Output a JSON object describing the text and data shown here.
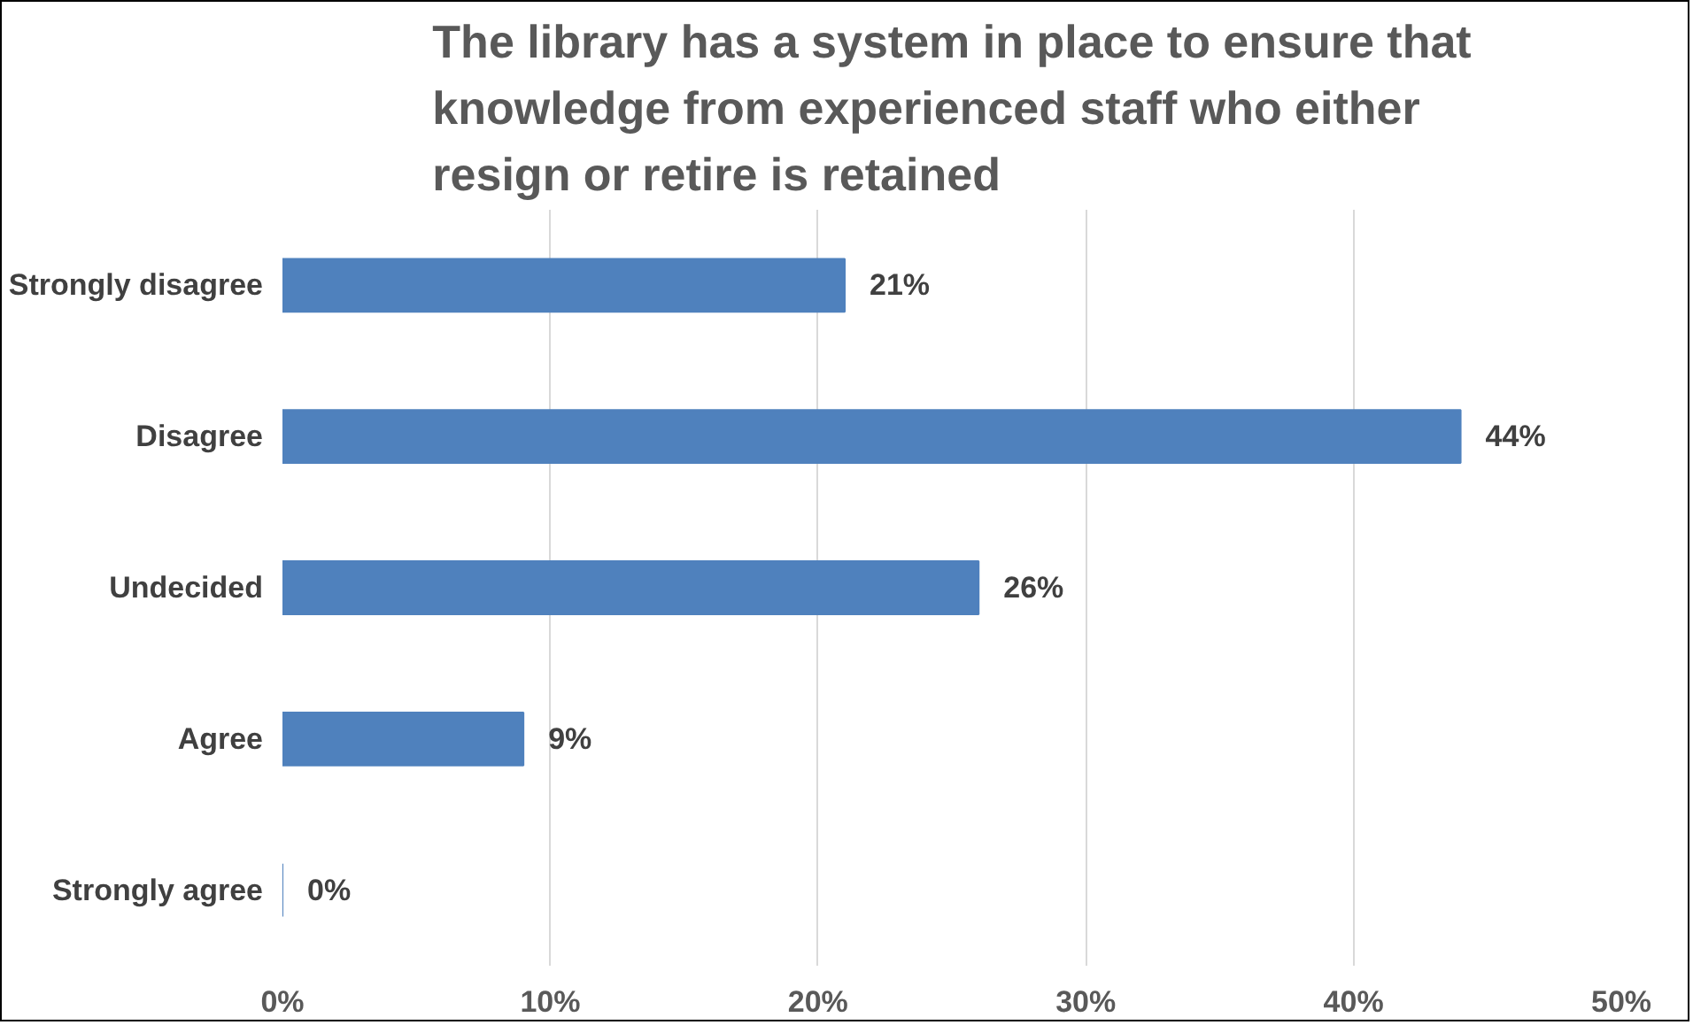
{
  "chart_data": {
    "type": "bar",
    "orientation": "horizontal",
    "title": "The library has a system in place to ensure that knowledge from experienced staff who either resign or retire is retained",
    "categories": [
      "Strongly disagree",
      "Disagree",
      "Undecided",
      "Agree",
      "Strongly agree"
    ],
    "values": [
      21,
      44,
      26,
      9,
      0
    ],
    "value_labels": [
      "21%",
      "44%",
      "26%",
      "9%",
      "0%"
    ],
    "color": "#4f81bd",
    "xlim": [
      0,
      50
    ],
    "xticks": [
      {
        "value": 0,
        "label": "0%"
      },
      {
        "value": 10,
        "label": "10%"
      },
      {
        "value": 20,
        "label": "20%"
      },
      {
        "value": 30,
        "label": "30%"
      },
      {
        "value": 40,
        "label": "40%"
      },
      {
        "value": 50,
        "label": "50%"
      }
    ],
    "grid": "x"
  }
}
